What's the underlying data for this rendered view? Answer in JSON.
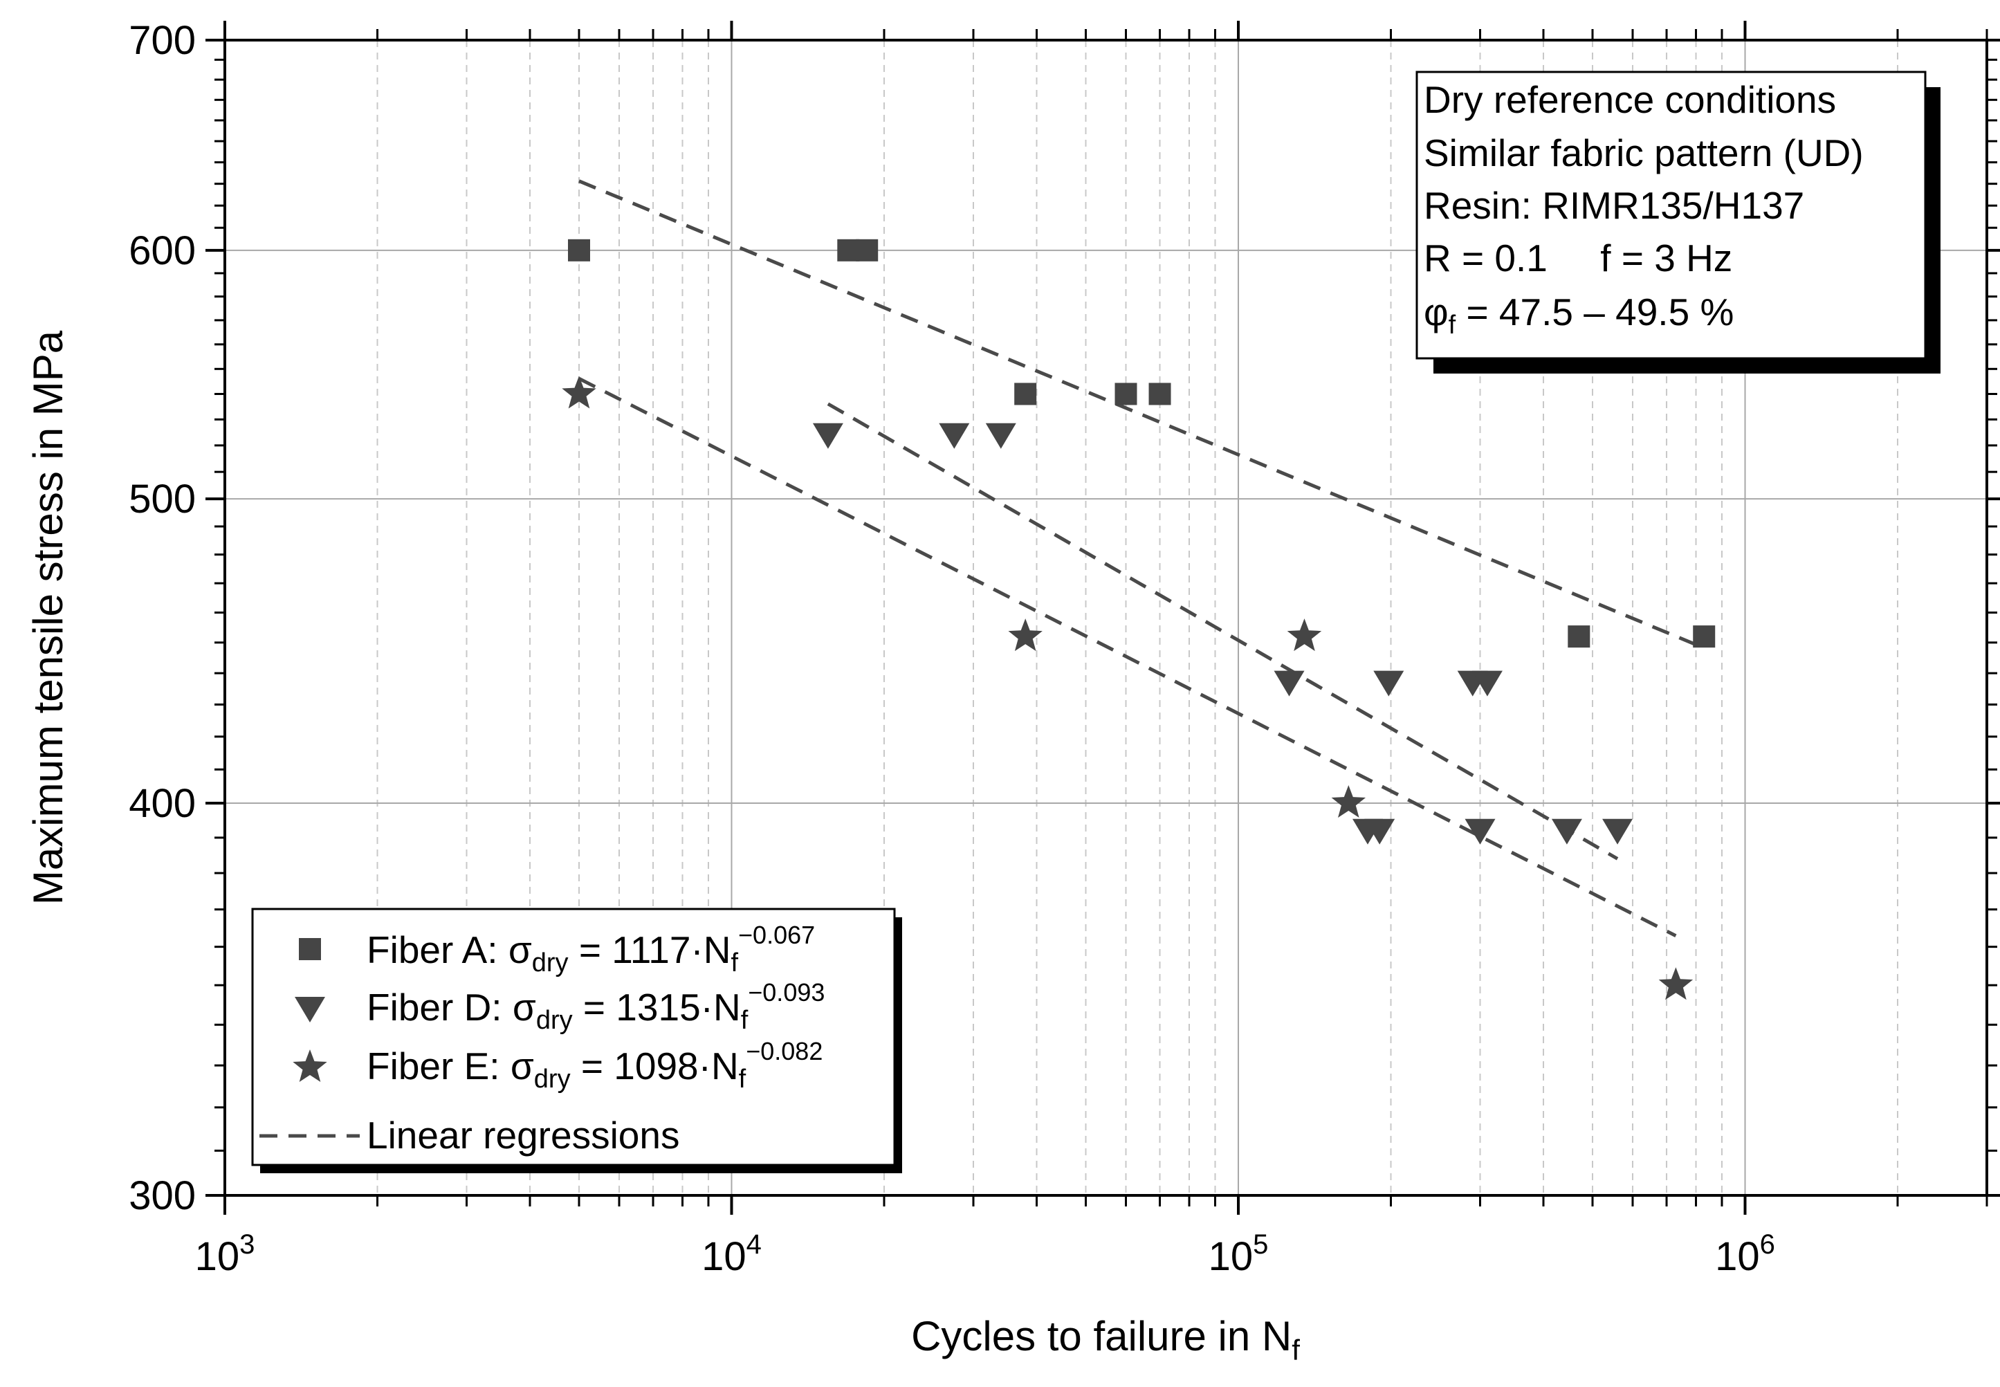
{
  "chart_data": {
    "type": "scatter",
    "x_scale": "log",
    "y_scale": "log",
    "xlim": [
      1000,
      3000000
    ],
    "ylim": [
      300,
      700
    ],
    "xlabel": "Cycles to failure in N",
    "xlabel_sub": "f",
    "ylabel": "Maximum tensile stress in MPa",
    "x_ticks": [
      {
        "value": 1000,
        "base": "10",
        "exp": "3"
      },
      {
        "value": 10000,
        "base": "10",
        "exp": "4"
      },
      {
        "value": 100000,
        "base": "10",
        "exp": "5"
      },
      {
        "value": 1000000,
        "base": "10",
        "exp": "6"
      }
    ],
    "y_ticks": [
      {
        "value": 300,
        "label": "300"
      },
      {
        "value": 400,
        "label": "400"
      },
      {
        "value": 500,
        "label": "500"
      },
      {
        "value": 600,
        "label": "600"
      },
      {
        "value": 700,
        "label": "700"
      }
    ],
    "grid": true,
    "series": [
      {
        "name": "Fiber A",
        "marker": "square",
        "legend": {
          "prefix": "Fiber A: ",
          "sym": "σ",
          "sub": "dry",
          "eq": " = 1117·N",
          "nsub": "f",
          "exp": "−0.067"
        },
        "a": 1117,
        "b": -0.067,
        "fit_range": [
          5000,
          830000
        ],
        "x": [
          5000,
          17000,
          18500,
          38000,
          60000,
          70000,
          470000,
          830000
        ],
        "y": [
          600,
          600,
          600,
          540,
          540,
          540,
          452,
          452
        ]
      },
      {
        "name": "Fiber D",
        "marker": "triangle-down",
        "legend": {
          "prefix": "Fiber D: ",
          "sym": "σ",
          "sub": "dry",
          "eq": " = 1315·N",
          "nsub": "f",
          "exp": "−0.093"
        },
        "a": 1315,
        "b": -0.093,
        "fit_range": [
          15500,
          560000
        ],
        "x": [
          15500,
          27500,
          34000,
          126000,
          198000,
          290000,
          310000,
          180000,
          190000,
          300000,
          445000,
          560000
        ],
        "y": [
          524,
          524,
          524,
          437,
          437,
          437,
          437,
          392,
          392,
          392,
          392,
          392
        ]
      },
      {
        "name": "Fiber E",
        "marker": "star",
        "legend": {
          "prefix": "Fiber E: ",
          "sym": "σ",
          "sub": "dry",
          "eq": " = 1098·N",
          "nsub": "f",
          "exp": "−0.082"
        },
        "a": 1098,
        "b": -0.082,
        "fit_range": [
          5000,
          730000
        ],
        "x": [
          5000,
          38000,
          135000,
          165000,
          730000
        ],
        "y": [
          540,
          452,
          452,
          400,
          350
        ]
      }
    ],
    "regression_label": "Linear regressions",
    "legend_position": "bottom-left",
    "colors": {
      "marker": "#454545",
      "line": "#4a4a4a",
      "grid_major": "#a8a8a8",
      "grid_minor": "#c8c8c8"
    }
  },
  "info_box": {
    "lines": [
      "Dry reference conditions",
      "Similar fabric pattern (UD)",
      "Resin: RIMR135/H137",
      "R = 0.1     f = 3 Hz"
    ],
    "phi_sym": "φ",
    "phi_sub": "f",
    "phi_rest": " = 47.5 – 49.5 %"
  }
}
